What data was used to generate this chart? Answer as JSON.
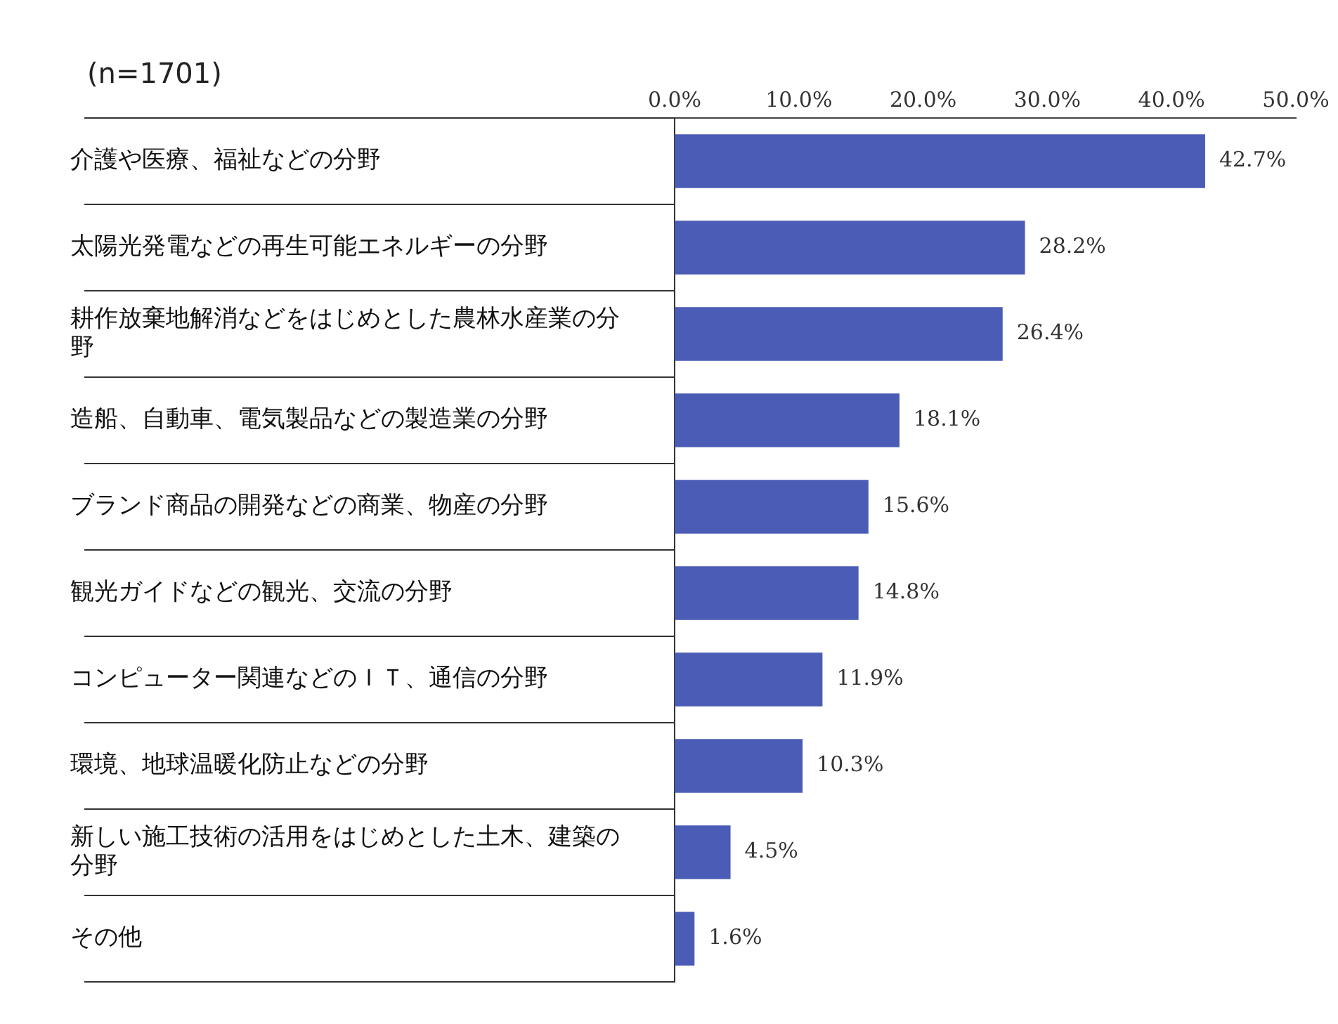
{
  "chart_data": {
    "type": "bar",
    "orientation": "horizontal",
    "annotations": [
      "(n=1701)"
    ],
    "categories": [
      "介護や医療、福祉などの分野",
      "太陽光発電などの再生可能エネルギーの分野",
      "耕作放棄地解消などをはじめとした農林水産業の分野",
      "造船、自動車、電気製品などの製造業の分野",
      "ブランド商品の開発などの商業、物産の分野",
      "観光ガイドなどの観光、交流の分野",
      "コンピューター関連などのＩＴ、通信の分野",
      "環境、地球温暖化防止などの分野",
      "新しい施工技術の活用をはじめとした土木、建築の分野",
      "その他"
    ],
    "values": [
      42.7,
      28.2,
      26.4,
      18.1,
      15.6,
      14.8,
      11.9,
      10.3,
      4.5,
      1.6
    ],
    "value_labels": [
      "42.7%",
      "28.2%",
      "26.4%",
      "18.1%",
      "15.6%",
      "14.8%",
      "11.9%",
      "10.3%",
      "4.5%",
      "1.6%"
    ],
    "color": "#4a5cb5",
    "xlim": [
      0,
      50
    ],
    "xticks": [
      {
        "value": 0,
        "label": "0.0%"
      },
      {
        "value": 10,
        "label": "10.0%"
      },
      {
        "value": 20,
        "label": "20.0%"
      },
      {
        "value": 30,
        "label": "30.0%"
      },
      {
        "value": 40,
        "label": "40.0%"
      },
      {
        "value": 50,
        "label": "50.0%"
      }
    ],
    "grid": false,
    "legend": false
  }
}
